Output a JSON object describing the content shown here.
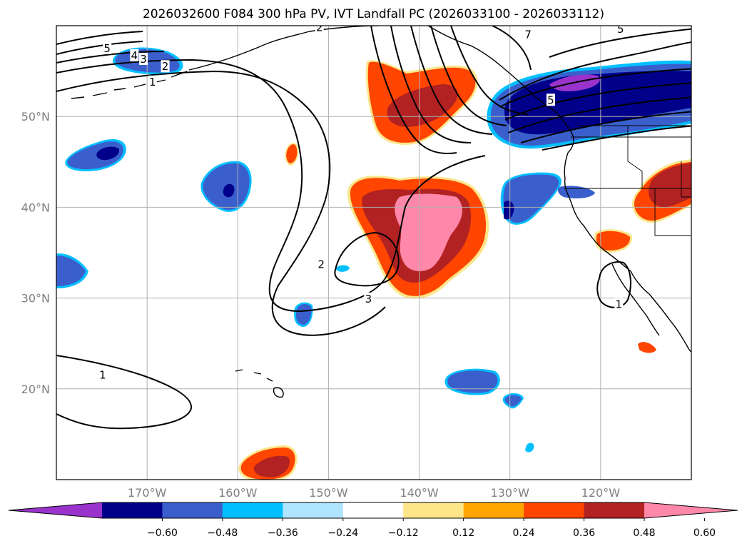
{
  "title": "2026032600 F084 300 hPa PV, IVT Landfall PC (2026033100 - 2026033112)",
  "map": {
    "lon_range": [
      -180,
      -110
    ],
    "lat_range": [
      10,
      60
    ],
    "lat_ticks": [
      {
        "value": 50,
        "label": "50°N"
      },
      {
        "value": 40,
        "label": "40°N"
      },
      {
        "value": 30,
        "label": "30°N"
      },
      {
        "value": 20,
        "label": "20°N"
      }
    ],
    "lon_ticks": [
      {
        "value": -170,
        "label": "170°W"
      },
      {
        "value": -160,
        "label": "160°W"
      },
      {
        "value": -150,
        "label": "150°W"
      },
      {
        "value": -140,
        "label": "140°W"
      },
      {
        "value": -130,
        "label": "130°W"
      },
      {
        "value": -120,
        "label": "120°W"
      }
    ],
    "grid": true,
    "contour_labels": [
      {
        "text": "5",
        "lon": -174.4,
        "lat": 57.5
      },
      {
        "text": "4",
        "lon": -171.4,
        "lat": 56.7
      },
      {
        "text": "3",
        "lon": -170.4,
        "lat": 56.3
      },
      {
        "text": "2",
        "lon": -168.0,
        "lat": 55.5
      },
      {
        "text": "1",
        "lon": -169.4,
        "lat": 53.8
      },
      {
        "text": "2",
        "lon": -150.8,
        "lat": 33.7
      },
      {
        "text": "3",
        "lon": -145.6,
        "lat": 29.9
      },
      {
        "text": "1",
        "lon": -174.9,
        "lat": 21.5
      },
      {
        "text": "1",
        "lon": -118.0,
        "lat": 29.3
      },
      {
        "text": "2",
        "lon": -151.0,
        "lat": 59.8
      },
      {
        "text": "7",
        "lon": -128.0,
        "lat": 59.0
      },
      {
        "text": "5",
        "lon": -117.8,
        "lat": 59.6
      },
      {
        "text": "5",
        "lon": -125.5,
        "lat": 51.8
      }
    ]
  },
  "colorbar": {
    "colors": [
      "#9933cc",
      "#00008b",
      "#3a5fcd",
      "#00bfff",
      "#aee4fd",
      "#ffffff",
      "#fde68a",
      "#ffa500",
      "#ff4500",
      "#b22222",
      "#ff88aa"
    ],
    "labels": [
      "−0.60",
      "−0.48",
      "−0.36",
      "−0.24",
      "−0.12",
      "0.12",
      "0.24",
      "0.36",
      "0.48",
      "0.60"
    ]
  }
}
